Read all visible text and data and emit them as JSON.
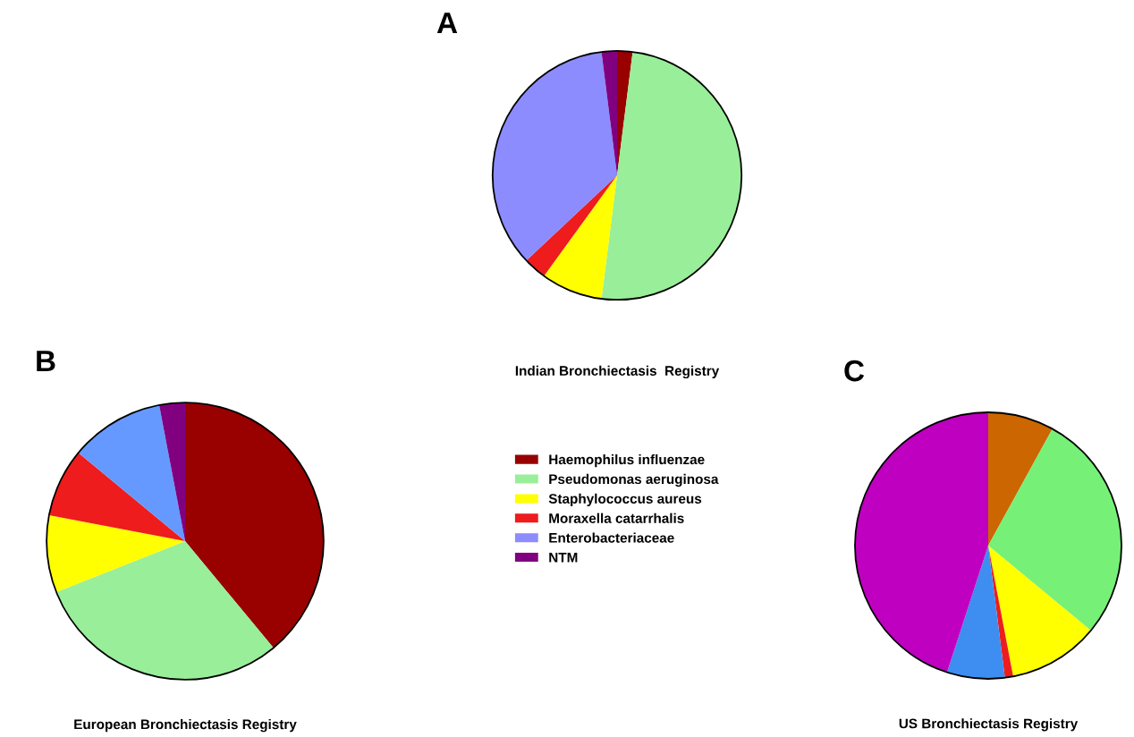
{
  "chart_data": [
    {
      "type": "pie",
      "title": "A",
      "xlabel": "Indian Bronchiectasis  Registry",
      "legend": "bottom",
      "categories": [
        "Haemophilus influenzae",
        "Pseudomonas aeruginosa",
        "Staphylococcus aureus",
        "Moraxella catarrhalis",
        "Enterobacteriaceae",
        "NTM"
      ],
      "values": [
        2,
        50,
        8,
        3,
        35,
        2
      ],
      "colors": [
        "#990000",
        "#99ee99",
        "#ffff00",
        "#ee1c1c",
        "#8c8cff",
        "#800080"
      ]
    },
    {
      "type": "pie",
      "title": "B",
      "xlabel": "European Bronchiectasis Registry",
      "categories": [
        null,
        null,
        null,
        null,
        null,
        null
      ],
      "values": [
        39,
        30,
        9,
        8,
        11,
        3
      ],
      "colors": [
        "#990000",
        "#99ee99",
        "#ffff00",
        "#ee1c1c",
        "#6699ff",
        "#800080"
      ]
    },
    {
      "type": "pie",
      "title": "C",
      "xlabel": "US Bronchiectasis Registry",
      "categories": [
        null,
        null,
        null,
        null,
        null,
        null
      ],
      "values": [
        8,
        28,
        11,
        1,
        7,
        45
      ],
      "colors": [
        "#cc6600",
        "#77f077",
        "#ffff00",
        "#ee1c1c",
        "#3d8ef0",
        "#c000c0"
      ]
    }
  ]
}
